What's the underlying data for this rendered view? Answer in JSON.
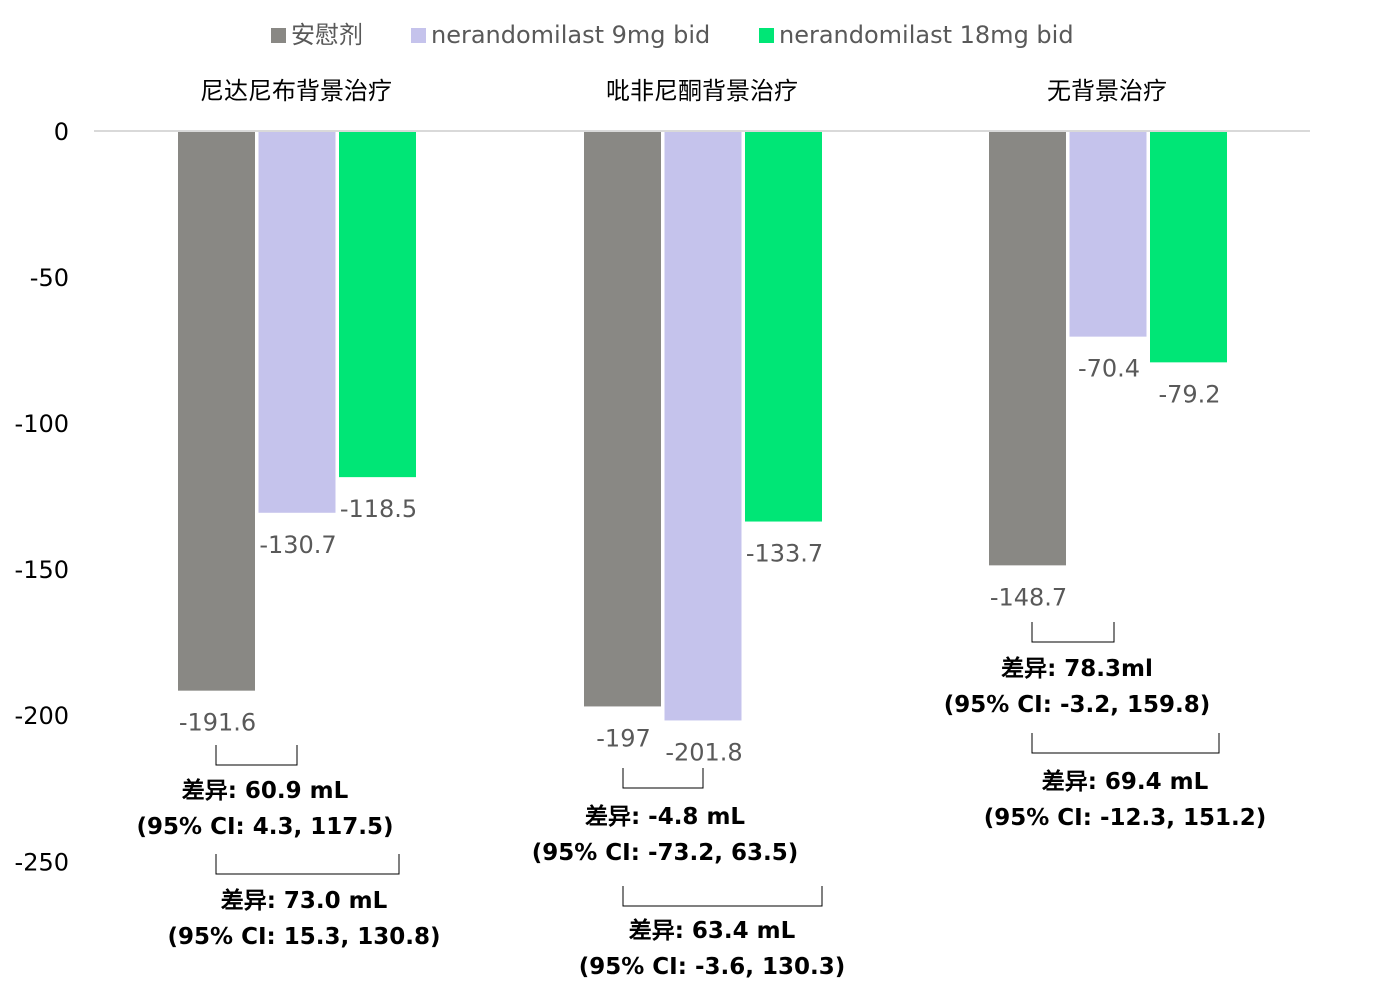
{
  "chart_data": {
    "type": "bar",
    "categories": [
      "尼达尼布背景治疗",
      "吡非尼酮背景治疗",
      "无背景治疗"
    ],
    "series": [
      {
        "name": "安慰剂",
        "color": "#898884",
        "values": [
          -191.6,
          -197,
          -148.7
        ],
        "labels": [
          "-191.6",
          "-197",
          "-148.7"
        ]
      },
      {
        "name": "nerandomilast 9mg bid",
        "color": "#c5c3ec",
        "values": [
          -130.7,
          -201.8,
          -70.4
        ],
        "labels": [
          "-130.7",
          "-201.8",
          "-70.4"
        ]
      },
      {
        "name": "nerandomilast 18mg bid",
        "color": "#00e676",
        "values": [
          -118.5,
          -133.7,
          -79.2
        ],
        "labels": [
          "-118.5",
          "-133.7",
          "-79.2"
        ]
      }
    ],
    "ylim": [
      -250,
      0
    ],
    "yticks": [
      0,
      -50,
      -100,
      -150,
      -200,
      -250
    ],
    "ytick_labels": [
      "0",
      "-50",
      "-100",
      "-150",
      "-200",
      "-250"
    ],
    "legend_position": "top",
    "grid": false,
    "annotations": [
      {
        "group": 0,
        "from_series": 0,
        "to_series": 1,
        "lines": [
          "差异: 60.9 mL",
          "(95% CI: 4.3, 117.5)"
        ]
      },
      {
        "group": 0,
        "from_series": 0,
        "to_series": 2,
        "lines": [
          "差异: 73.0 mL",
          "(95% CI: 15.3, 130.8)"
        ]
      },
      {
        "group": 1,
        "from_series": 0,
        "to_series": 1,
        "lines": [
          "差异: -4.8 mL",
          "(95% CI: -73.2, 63.5)"
        ]
      },
      {
        "group": 1,
        "from_series": 0,
        "to_series": 2,
        "lines": [
          "差异: 63.4 mL",
          "(95% CI: -3.6, 130.3)"
        ]
      },
      {
        "group": 2,
        "from_series": 0,
        "to_series": 1,
        "lines": [
          "差异: 78.3ml",
          "(95% CI: -3.2, 159.8)"
        ]
      },
      {
        "group": 2,
        "from_series": 0,
        "to_series": 2,
        "lines": [
          "差异: 69.4 mL",
          "(95% CI: -12.3, 151.2)"
        ]
      }
    ]
  }
}
